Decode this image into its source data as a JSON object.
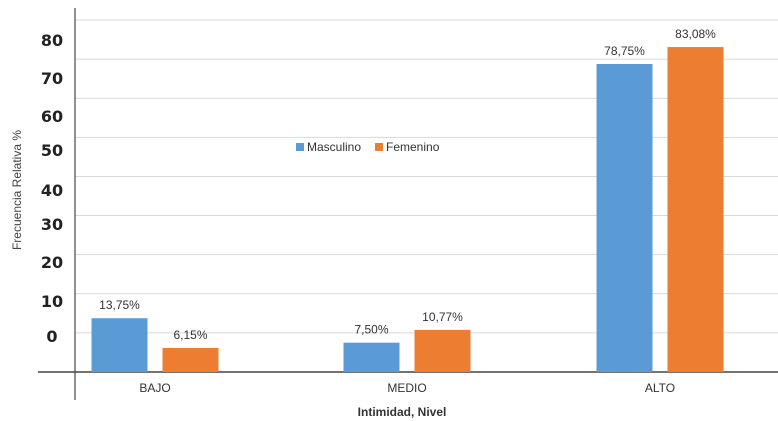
{
  "chart_data": {
    "type": "bar",
    "categories": [
      "BAJO",
      "MEDIO",
      "ALTO"
    ],
    "series": [
      {
        "name": "Masculino",
        "values": [
          13.75,
          7.5,
          78.75
        ],
        "labels": [
          "13,75%",
          "7,50%",
          "78,75%"
        ],
        "color": "#5b9bd5"
      },
      {
        "name": "Femenino",
        "values": [
          6.15,
          10.77,
          83.08
        ],
        "labels": [
          "6,15%",
          "10,77%",
          "83,08%"
        ],
        "color": "#ed7d31"
      }
    ],
    "y_tick_labels": [
      "0",
      "10",
      "20",
      "30",
      "40",
      "50",
      "60",
      "70",
      "80"
    ],
    "ylim": [
      0,
      90
    ],
    "xlabel": "Intimidad, Nivel",
    "ylabel": "Frecuencia Relativa %",
    "grid": true,
    "legend_position": "center"
  }
}
